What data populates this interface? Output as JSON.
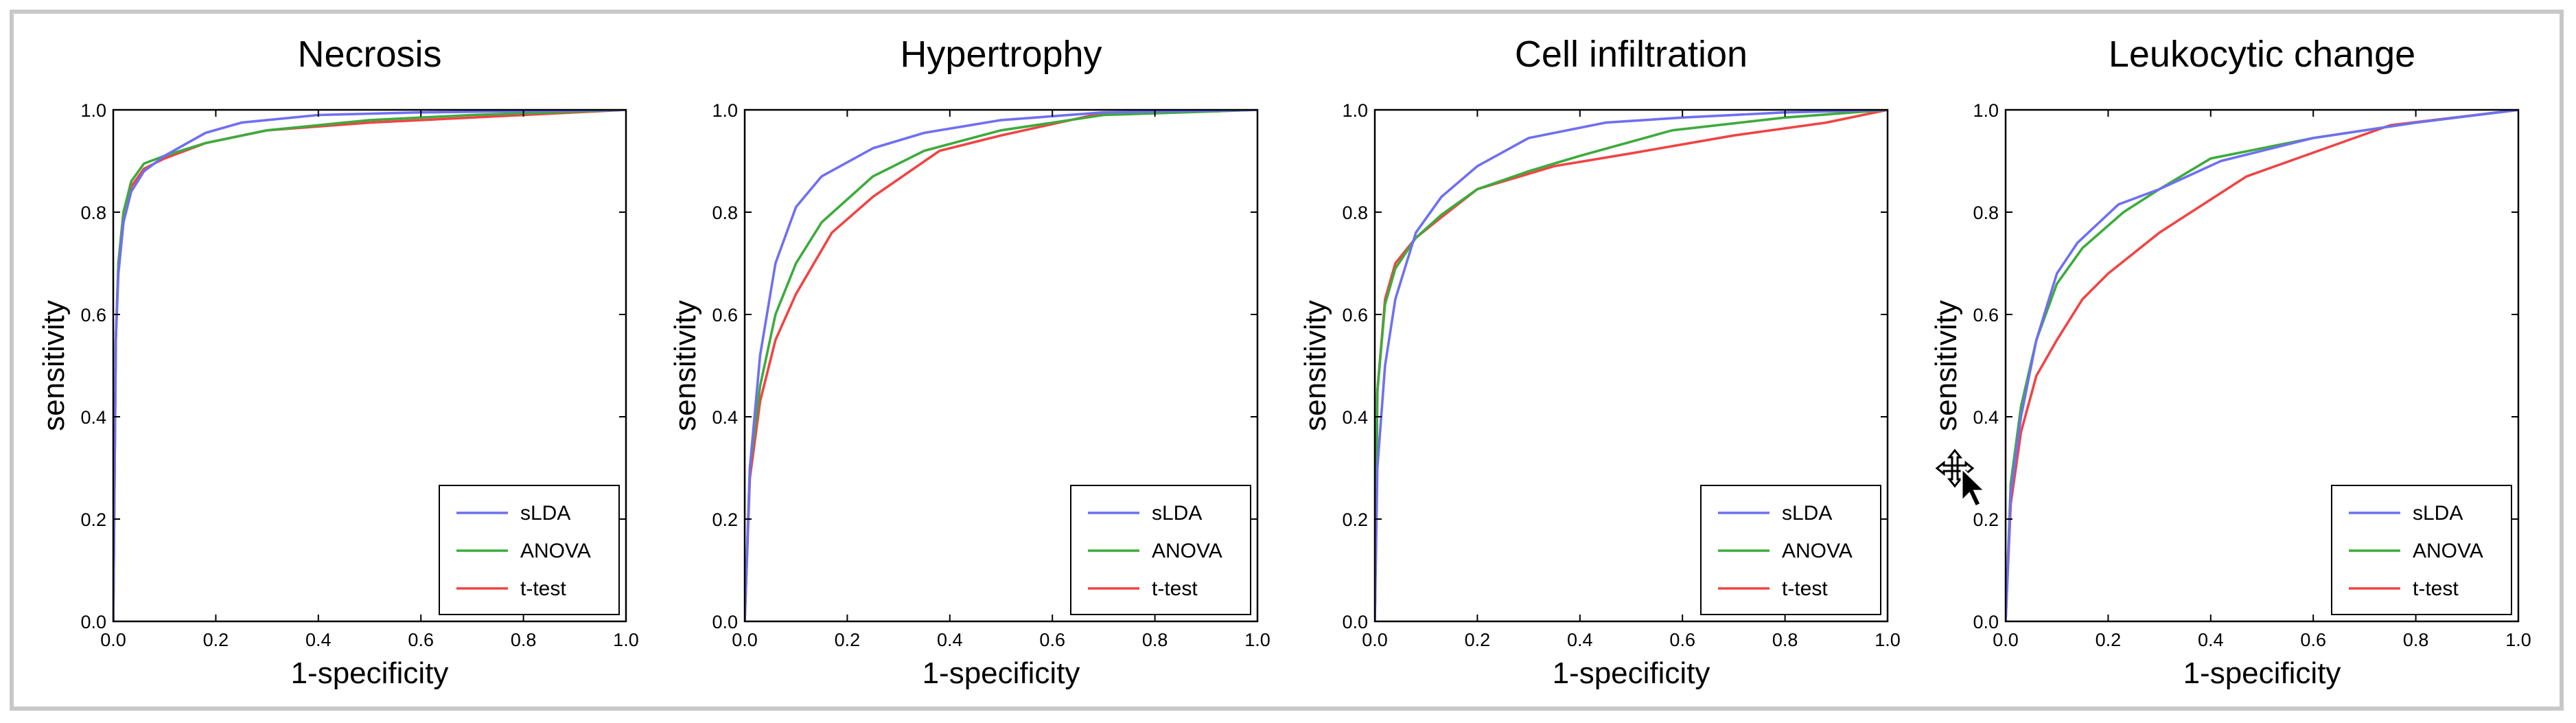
{
  "colors": {
    "sLDA": "#6f6ff2",
    "ANOVA": "#3dab3d",
    "t-test": "#f04444",
    "frame": "#c8c8c8"
  },
  "icons": {
    "cursor": "move-cursor-icon"
  },
  "chart_data": [
    {
      "type": "line",
      "title": "Necrosis",
      "xlabel": "1-specificity",
      "ylabel": "sensitivity",
      "xlim": [
        0,
        1
      ],
      "ylim": [
        0,
        1
      ],
      "xticks": [
        "0.0",
        "0.2",
        "0.4",
        "0.6",
        "0.8",
        "1.0"
      ],
      "yticks": [
        "0.0",
        "0.2",
        "0.4",
        "0.6",
        "0.8",
        "1.0"
      ],
      "grid": false,
      "legend": "bottom-right",
      "series": [
        {
          "name": "sLDA",
          "x": [
            0,
            0.005,
            0.01,
            0.02,
            0.035,
            0.06,
            0.1,
            0.18,
            0.25,
            0.4,
            0.6,
            1.0
          ],
          "y": [
            0,
            0.55,
            0.68,
            0.78,
            0.84,
            0.88,
            0.91,
            0.955,
            0.975,
            0.99,
            0.995,
            1.0
          ]
        },
        {
          "name": "ANOVA",
          "x": [
            0,
            0.005,
            0.01,
            0.02,
            0.035,
            0.06,
            0.1,
            0.18,
            0.3,
            0.5,
            0.7,
            1.0
          ],
          "y": [
            0,
            0.55,
            0.7,
            0.8,
            0.86,
            0.895,
            0.91,
            0.935,
            0.96,
            0.98,
            0.99,
            1.0
          ]
        },
        {
          "name": "t-test",
          "x": [
            0,
            0.005,
            0.01,
            0.02,
            0.035,
            0.06,
            0.1,
            0.18,
            0.3,
            0.5,
            0.7,
            1.0
          ],
          "y": [
            0,
            0.55,
            0.7,
            0.8,
            0.85,
            0.885,
            0.905,
            0.935,
            0.96,
            0.975,
            0.985,
            1.0
          ]
        }
      ]
    },
    {
      "type": "line",
      "title": "Hypertrophy",
      "xlabel": "1-specificity",
      "ylabel": "sensitivity",
      "xlim": [
        0,
        1
      ],
      "ylim": [
        0,
        1
      ],
      "xticks": [
        "0.0",
        "0.2",
        "0.4",
        "0.6",
        "0.8",
        "1.0"
      ],
      "yticks": [
        "0.0",
        "0.2",
        "0.4",
        "0.6",
        "0.8",
        "1.0"
      ],
      "grid": false,
      "legend": "bottom-right",
      "series": [
        {
          "name": "sLDA",
          "x": [
            0,
            0.01,
            0.03,
            0.06,
            0.1,
            0.15,
            0.25,
            0.35,
            0.5,
            0.7,
            1.0
          ],
          "y": [
            0,
            0.3,
            0.52,
            0.7,
            0.81,
            0.87,
            0.925,
            0.955,
            0.98,
            0.995,
            1.0
          ]
        },
        {
          "name": "ANOVA",
          "x": [
            0,
            0.01,
            0.03,
            0.06,
            0.1,
            0.15,
            0.25,
            0.35,
            0.5,
            0.7,
            1.0
          ],
          "y": [
            0,
            0.3,
            0.46,
            0.6,
            0.7,
            0.78,
            0.87,
            0.92,
            0.96,
            0.99,
            1.0
          ]
        },
        {
          "name": "t-test",
          "x": [
            0,
            0.01,
            0.03,
            0.06,
            0.1,
            0.17,
            0.25,
            0.38,
            0.5,
            0.68,
            1.0
          ],
          "y": [
            0,
            0.28,
            0.43,
            0.55,
            0.64,
            0.76,
            0.83,
            0.92,
            0.95,
            0.99,
            1.0
          ]
        }
      ]
    },
    {
      "type": "line",
      "title": "Cell infiltration",
      "xlabel": "1-specificity",
      "ylabel": "sensitivity",
      "xlim": [
        0,
        1
      ],
      "ylim": [
        0,
        1
      ],
      "xticks": [
        "0.0",
        "0.2",
        "0.4",
        "0.6",
        "0.8",
        "1.0"
      ],
      "yticks": [
        "0.0",
        "0.2",
        "0.4",
        "0.6",
        "0.8",
        "1.0"
      ],
      "grid": false,
      "legend": "bottom-right",
      "series": [
        {
          "name": "sLDA",
          "x": [
            0,
            0.005,
            0.02,
            0.04,
            0.08,
            0.13,
            0.2,
            0.3,
            0.45,
            0.6,
            0.8,
            1.0
          ],
          "y": [
            0,
            0.3,
            0.5,
            0.63,
            0.76,
            0.83,
            0.89,
            0.945,
            0.975,
            0.985,
            0.995,
            1.0
          ]
        },
        {
          "name": "ANOVA",
          "x": [
            0,
            0.005,
            0.02,
            0.04,
            0.08,
            0.13,
            0.2,
            0.3,
            0.4,
            0.58,
            0.8,
            1.0
          ],
          "y": [
            0,
            0.45,
            0.62,
            0.69,
            0.75,
            0.795,
            0.845,
            0.88,
            0.91,
            0.96,
            0.985,
            1.0
          ]
        },
        {
          "name": "t-test",
          "x": [
            0,
            0.005,
            0.02,
            0.04,
            0.08,
            0.13,
            0.2,
            0.35,
            0.5,
            0.7,
            0.88,
            1.0
          ],
          "y": [
            0,
            0.45,
            0.63,
            0.7,
            0.75,
            0.79,
            0.845,
            0.89,
            0.915,
            0.95,
            0.975,
            1.0
          ]
        }
      ]
    },
    {
      "type": "line",
      "title": "Leukocytic change",
      "xlabel": "1-specificity",
      "ylabel": "sensitivity",
      "xlim": [
        0,
        1
      ],
      "ylim": [
        0,
        1
      ],
      "xticks": [
        "0.0",
        "0.2",
        "0.4",
        "0.6",
        "0.8",
        "1.0"
      ],
      "yticks": [
        "0.0",
        "0.2",
        "0.4",
        "0.6",
        "0.8",
        "1.0"
      ],
      "grid": false,
      "legend": "bottom-right",
      "series": [
        {
          "name": "sLDA",
          "x": [
            0,
            0.01,
            0.03,
            0.06,
            0.1,
            0.14,
            0.22,
            0.3,
            0.42,
            0.6,
            0.8,
            1.0
          ],
          "y": [
            0,
            0.25,
            0.4,
            0.55,
            0.68,
            0.74,
            0.815,
            0.845,
            0.9,
            0.945,
            0.975,
            1.0
          ]
        },
        {
          "name": "ANOVA",
          "x": [
            0,
            0.01,
            0.03,
            0.06,
            0.1,
            0.15,
            0.23,
            0.3,
            0.4,
            0.6,
            0.8,
            1.0
          ],
          "y": [
            0,
            0.27,
            0.42,
            0.55,
            0.66,
            0.73,
            0.8,
            0.845,
            0.905,
            0.945,
            0.975,
            1.0
          ]
        },
        {
          "name": "t-test",
          "x": [
            0,
            0.01,
            0.03,
            0.06,
            0.1,
            0.15,
            0.2,
            0.3,
            0.47,
            0.75,
            1.0
          ],
          "y": [
            0,
            0.23,
            0.37,
            0.48,
            0.55,
            0.63,
            0.68,
            0.76,
            0.87,
            0.97,
            1.0
          ]
        }
      ]
    }
  ]
}
